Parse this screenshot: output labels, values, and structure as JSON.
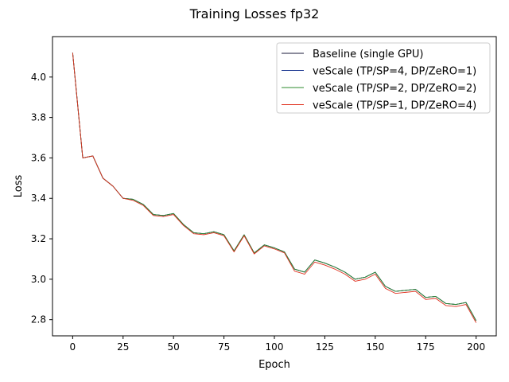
{
  "chart_data": {
    "type": "line",
    "title": "Training Losses fp32",
    "xlabel": "Epoch",
    "ylabel": "Loss",
    "xlim": [
      -10,
      210
    ],
    "ylim": [
      2.72,
      4.2
    ],
    "xticks": [
      0,
      25,
      50,
      75,
      100,
      125,
      150,
      175,
      200
    ],
    "yticks": [
      2.8,
      3.0,
      3.2,
      3.4,
      3.6,
      3.8,
      4.0
    ],
    "grid": false,
    "legend_position": "top-right",
    "x": [
      0,
      5,
      10,
      15,
      20,
      25,
      30,
      35,
      40,
      45,
      50,
      55,
      60,
      65,
      70,
      75,
      80,
      85,
      90,
      95,
      100,
      105,
      110,
      115,
      120,
      125,
      130,
      135,
      140,
      145,
      150,
      155,
      160,
      165,
      170,
      175,
      180,
      185,
      190,
      195,
      200
    ],
    "series": [
      {
        "name": "Baseline (single GPU)",
        "color": "#1a1a3a",
        "values": [
          4.12,
          3.6,
          3.61,
          3.5,
          3.46,
          3.4,
          3.395,
          3.37,
          3.32,
          3.315,
          3.325,
          3.27,
          3.23,
          3.225,
          3.235,
          3.22,
          3.14,
          3.22,
          3.13,
          3.17,
          3.155,
          3.135,
          3.05,
          3.035,
          3.095,
          3.08,
          3.06,
          3.035,
          3.0,
          3.01,
          3.035,
          2.965,
          2.94,
          2.945,
          2.95,
          2.91,
          2.915,
          2.88,
          2.875,
          2.885,
          2.795
        ]
      },
      {
        "name": "veScale (TP/SP=4, DP/ZeRO=1)",
        "color": "#1f3a93",
        "values": [
          4.12,
          3.6,
          3.61,
          3.5,
          3.46,
          3.4,
          3.395,
          3.37,
          3.32,
          3.315,
          3.325,
          3.27,
          3.23,
          3.225,
          3.235,
          3.22,
          3.14,
          3.22,
          3.13,
          3.17,
          3.155,
          3.135,
          3.05,
          3.035,
          3.095,
          3.08,
          3.06,
          3.035,
          3.0,
          3.01,
          3.035,
          2.965,
          2.94,
          2.945,
          2.95,
          2.91,
          2.915,
          2.88,
          2.875,
          2.885,
          2.795
        ]
      },
      {
        "name": "veScale (TP/SP=2, DP/ZeRO=2)",
        "color": "#2e8b2e",
        "values": [
          4.12,
          3.6,
          3.61,
          3.5,
          3.46,
          3.4,
          3.395,
          3.37,
          3.32,
          3.315,
          3.325,
          3.27,
          3.23,
          3.225,
          3.235,
          3.22,
          3.14,
          3.22,
          3.13,
          3.17,
          3.155,
          3.135,
          3.05,
          3.035,
          3.095,
          3.08,
          3.06,
          3.035,
          3.0,
          3.01,
          3.035,
          2.965,
          2.94,
          2.945,
          2.95,
          2.91,
          2.915,
          2.88,
          2.875,
          2.885,
          2.795
        ]
      },
      {
        "name": "veScale (TP/SP=1, DP/ZeRO=4)",
        "color": "#e0301e",
        "values": [
          4.12,
          3.6,
          3.61,
          3.5,
          3.46,
          3.4,
          3.39,
          3.365,
          3.315,
          3.31,
          3.32,
          3.265,
          3.225,
          3.22,
          3.23,
          3.215,
          3.135,
          3.215,
          3.125,
          3.165,
          3.15,
          3.13,
          3.04,
          3.025,
          3.085,
          3.07,
          3.05,
          3.025,
          2.99,
          3.0,
          3.025,
          2.955,
          2.93,
          2.935,
          2.94,
          2.9,
          2.905,
          2.87,
          2.865,
          2.875,
          2.785
        ]
      }
    ]
  }
}
